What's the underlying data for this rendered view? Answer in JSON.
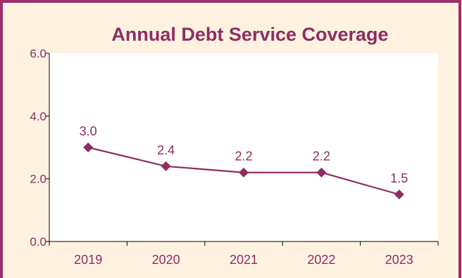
{
  "colors": {
    "border": "#9b2f6b",
    "background": "#fff2e1",
    "accent": "#8f2d62",
    "axis": "#000000"
  },
  "chart_data": {
    "type": "line",
    "title": "Annual Debt Service Coverage",
    "xlabel": "",
    "ylabel": "",
    "categories": [
      "2019",
      "2020",
      "2021",
      "2022",
      "2023"
    ],
    "series": [
      {
        "values": [
          3.0,
          2.4,
          2.2,
          2.2,
          1.5
        ],
        "labels": [
          "3.0",
          "2.4",
          "2.2",
          "2.2",
          "1.5"
        ],
        "marker": "diamond"
      }
    ],
    "ylim": [
      0,
      6
    ],
    "yticks": [
      0,
      2,
      4,
      6
    ],
    "ytick_labels": [
      "0.0",
      "2.0",
      "4.0",
      "6.0"
    ],
    "grid": false,
    "legend": "none"
  }
}
